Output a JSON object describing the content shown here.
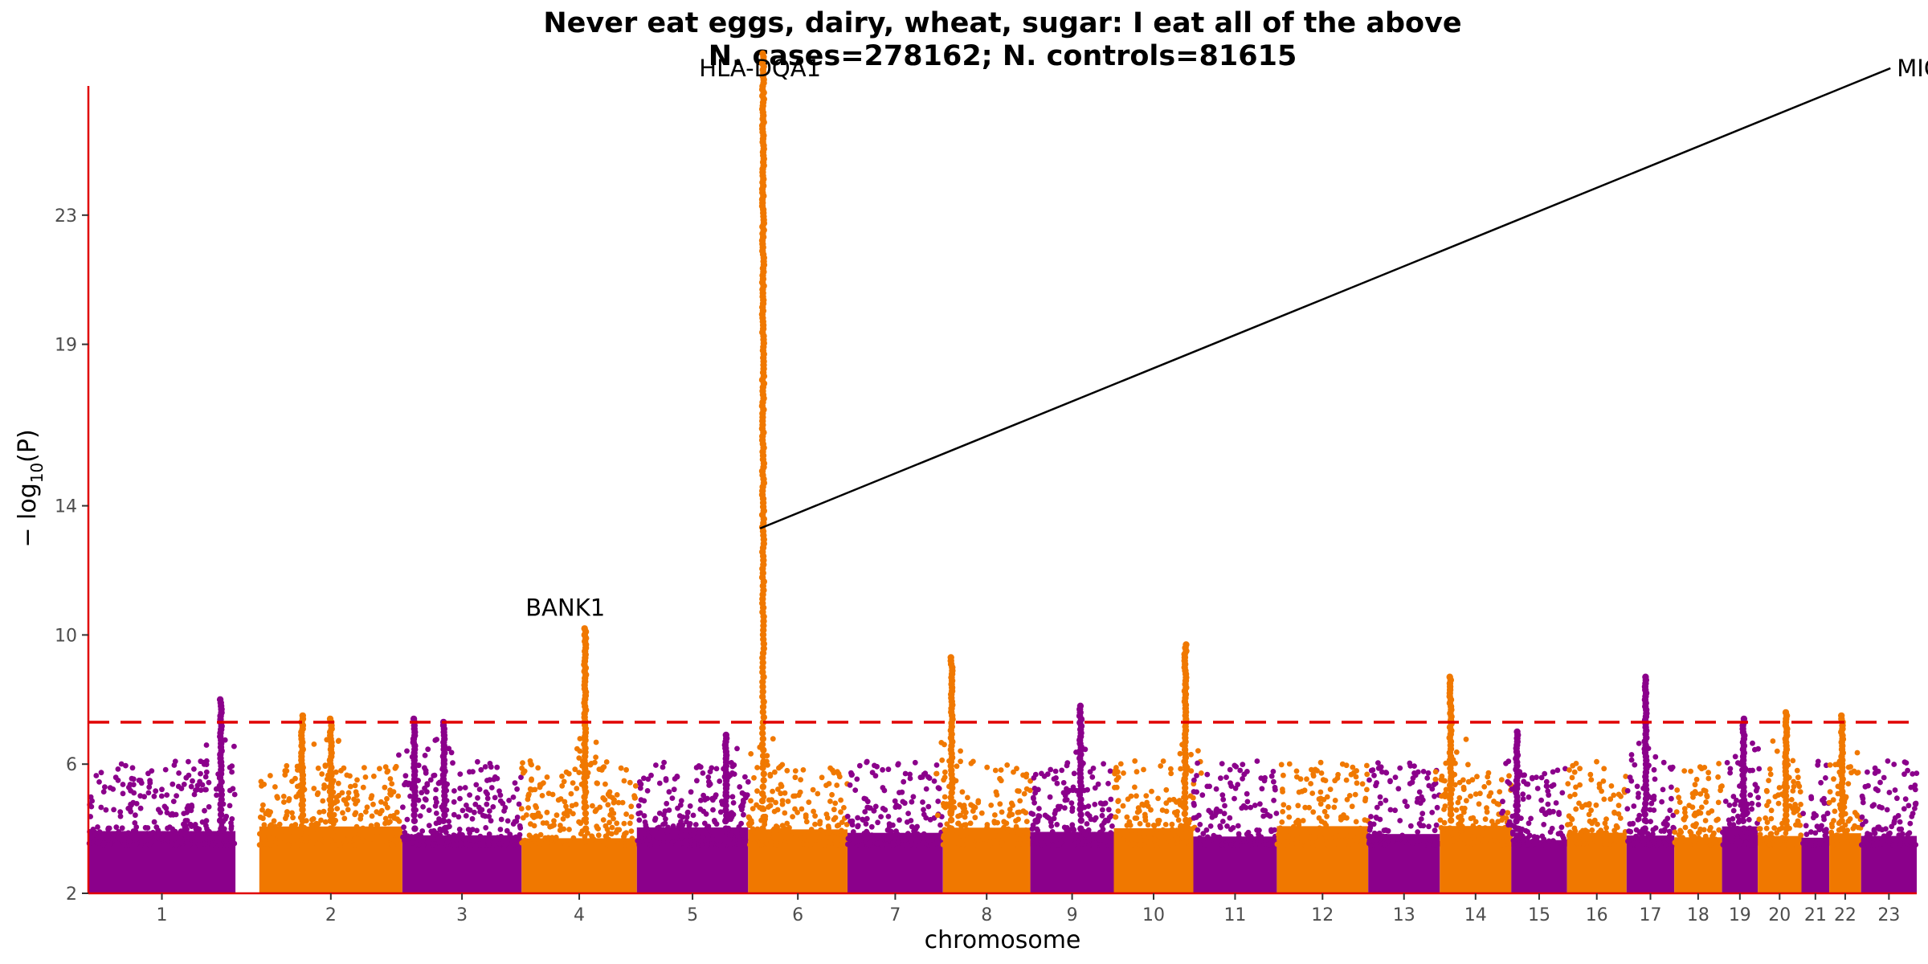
{
  "chart_data": {
    "type": "scatter",
    "subtype": "manhattan",
    "title": "Never eat eggs, dairy, wheat, sugar: I eat all of the above",
    "subtitle": "N. cases=278162; N. controls=81615",
    "xlabel": "chromosome",
    "ylabel": "−log10(P)",
    "ylabel_base": "− log",
    "ylabel_sub": "10",
    "ylabel_rest": "(P)",
    "ylim": [
      2,
      27
    ],
    "yticks": [
      2,
      6,
      10,
      14,
      19,
      23
    ],
    "significance_threshold": 7.3,
    "threshold_style": "red dashed line",
    "colors": {
      "odd": "#8b008b",
      "even": "#f07800",
      "axis": "#e00000",
      "threshold": "#e00000"
    },
    "chromosomes": [
      {
        "label": "1",
        "tick": 1,
        "start": 0.0,
        "end": 1.85,
        "gap_after": 0.3
      },
      {
        "label": "2",
        "tick": 2,
        "start": 2.15,
        "end": 3.95
      },
      {
        "label": "3",
        "tick": 3,
        "start": 3.95,
        "end": 5.45
      },
      {
        "label": "4",
        "tick": 4,
        "start": 5.45,
        "end": 6.9
      },
      {
        "label": "5",
        "tick": 5,
        "start": 6.9,
        "end": 8.3
      },
      {
        "label": "6",
        "tick": 6,
        "start": 8.3,
        "end": 9.55
      },
      {
        "label": "7",
        "tick": 7,
        "start": 9.55,
        "end": 10.75
      },
      {
        "label": "8",
        "tick": 8,
        "start": 10.75,
        "end": 11.85
      },
      {
        "label": "9",
        "tick": 9,
        "start": 11.85,
        "end": 12.9,
        "gap_before": 0.55
      },
      {
        "label": "10",
        "tick": 10,
        "start": 12.9,
        "end": 13.9
      },
      {
        "label": "11",
        "tick": 11,
        "start": 13.9,
        "end": 14.95
      },
      {
        "label": "12",
        "tick": 12,
        "start": 14.95,
        "end": 16.1
      },
      {
        "label": "13",
        "tick": 13,
        "start": 16.1,
        "end": 17.0
      },
      {
        "label": "14",
        "tick": 14,
        "start": 17.0,
        "end": 17.9
      },
      {
        "label": "15",
        "tick": 15,
        "start": 17.9,
        "end": 18.6
      },
      {
        "label": "16",
        "tick": 16,
        "start": 18.6,
        "end": 19.35
      },
      {
        "label": "17",
        "tick": 17,
        "start": 19.35,
        "end": 19.95
      },
      {
        "label": "18",
        "tick": 18,
        "start": 19.95,
        "end": 20.55
      },
      {
        "label": "19",
        "tick": 19,
        "start": 20.55,
        "end": 21.0
      },
      {
        "label": "20",
        "tick": 20,
        "start": 21.0,
        "end": 21.55
      },
      {
        "label": "21",
        "tick": 21,
        "start": 21.55,
        "end": 21.9
      },
      {
        "label": "22",
        "tick": 22,
        "start": 21.9,
        "end": 22.3
      },
      {
        "label": "23",
        "tick": 23,
        "start": 22.3,
        "end": 23.0
      }
    ],
    "peaks": [
      {
        "chrom": "1",
        "pos": 0.9,
        "max": 8.0
      },
      {
        "chrom": "2",
        "pos": 0.3,
        "max": 7.5
      },
      {
        "chrom": "2",
        "pos": 0.5,
        "max": 7.4
      },
      {
        "chrom": "3",
        "pos": 0.1,
        "max": 7.4
      },
      {
        "chrom": "3",
        "pos": 0.35,
        "max": 7.3
      },
      {
        "chrom": "4",
        "pos": 0.55,
        "max": 10.2
      },
      {
        "chrom": "5",
        "pos": 0.8,
        "max": 6.9
      },
      {
        "chrom": "6",
        "pos": 0.15,
        "max": 28.0
      },
      {
        "chrom": "8",
        "pos": 0.1,
        "max": 9.3
      },
      {
        "chrom": "9",
        "pos": 0.6,
        "max": 7.8
      },
      {
        "chrom": "10",
        "pos": 0.9,
        "max": 9.7
      },
      {
        "chrom": "14",
        "pos": 0.15,
        "max": 8.7
      },
      {
        "chrom": "15",
        "pos": 0.1,
        "max": 7.0
      },
      {
        "chrom": "17",
        "pos": 0.4,
        "max": 8.7
      },
      {
        "chrom": "19",
        "pos": 0.6,
        "max": 7.4
      },
      {
        "chrom": "20",
        "pos": 0.65,
        "max": 7.6
      },
      {
        "chrom": "22",
        "pos": 0.4,
        "max": 7.5
      }
    ],
    "annotations": [
      {
        "text": "HLA-DQA1",
        "chrom": "6",
        "x": 8.45,
        "y": 27.3
      },
      {
        "text": "BANK1",
        "chrom": "4",
        "x": 6.0,
        "y": 10.6
      },
      {
        "text": "MICA",
        "x": 22.75,
        "y": 27.3,
        "line_to": {
          "x": 8.45,
          "y": 13.3
        }
      }
    ]
  }
}
